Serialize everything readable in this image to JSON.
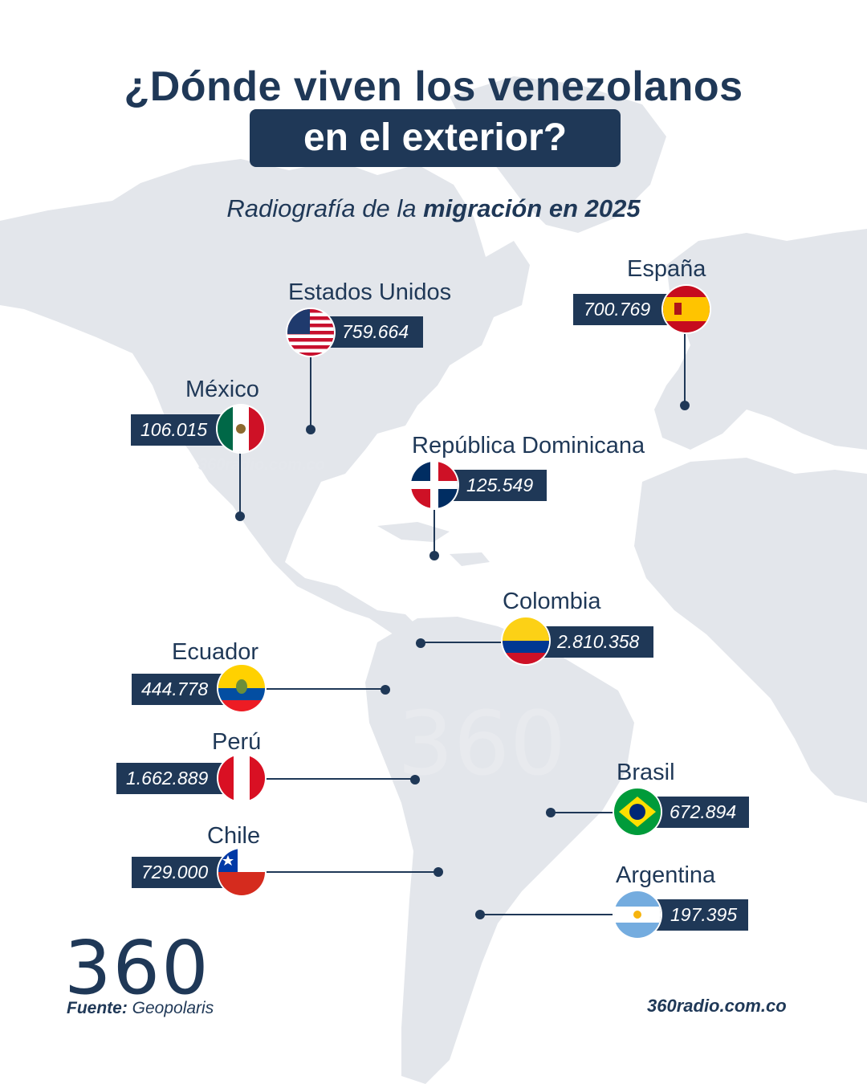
{
  "title": {
    "line1": "¿Dónde viven los venezolanos",
    "line2": "en el exterior?"
  },
  "subtitle": {
    "prefix": "Radiografía de la ",
    "emphasis": "migración en 2025"
  },
  "countries": [
    {
      "name": "Estados Unidos",
      "value": "759.664",
      "flag": "usa-flag"
    },
    {
      "name": "España",
      "value": "700.769",
      "flag": "spain-flag"
    },
    {
      "name": "México",
      "value": "106.015",
      "flag": "mexico-flag"
    },
    {
      "name": "República Dominicana",
      "value": "125.549",
      "flag": "dominican-republic-flag"
    },
    {
      "name": "Colombia",
      "value": "2.810.358",
      "flag": "colombia-flag"
    },
    {
      "name": "Ecuador",
      "value": "444.778",
      "flag": "ecuador-flag"
    },
    {
      "name": "Perú",
      "value": "1.662.889",
      "flag": "peru-flag"
    },
    {
      "name": "Brasil",
      "value": "672.894",
      "flag": "brazil-flag"
    },
    {
      "name": "Chile",
      "value": "729.000",
      "flag": "chile-flag"
    },
    {
      "name": "Argentina",
      "value": "197.395",
      "flag": "argentina-flag"
    }
  ],
  "branding": {
    "logo": "360",
    "watermark_logo": "360",
    "watermark_url": "360radio.com.co",
    "website": "360radio.com.co"
  },
  "source": {
    "label": "Fuente:",
    "name": " Geopolaris"
  },
  "colors": {
    "navy": "#1f3857",
    "land": "#e3e6eb",
    "background": "#ffffff"
  }
}
